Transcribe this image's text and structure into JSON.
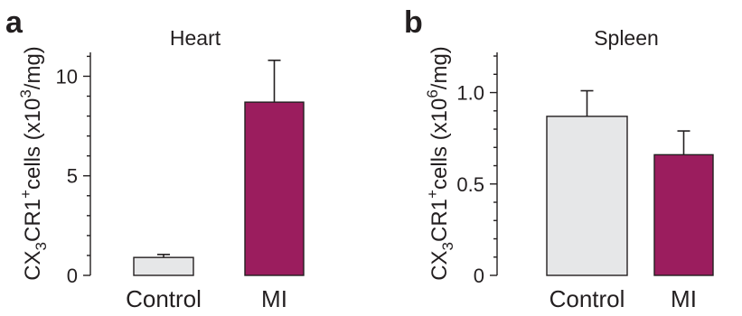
{
  "chart_data": [
    {
      "panel": "a",
      "type": "bar",
      "title": "Heart",
      "ylabel_parts": [
        "CX",
        "3",
        "CR1",
        "+",
        "cells (x10",
        "3",
        "/mg)"
      ],
      "categories": [
        "Control",
        "MI"
      ],
      "values": [
        0.9,
        8.7
      ],
      "errors": [
        0.15,
        2.1
      ],
      "colors": [
        "#e6e7e8",
        "#9b1d5e"
      ],
      "ylim": [
        0,
        11.2
      ],
      "yticks": [
        0,
        5,
        10
      ],
      "ytick_labels": [
        "0",
        "5",
        "10"
      ]
    },
    {
      "panel": "b",
      "type": "bar",
      "title": "Spleen",
      "ylabel_parts": [
        "CX",
        "3",
        "CR1",
        "+",
        "cells (x10",
        "6",
        "/mg)"
      ],
      "categories": [
        "Control",
        "MI"
      ],
      "values": [
        0.87,
        0.66
      ],
      "errors": [
        0.14,
        0.13
      ],
      "colors": [
        "#e6e7e8",
        "#9b1d5e"
      ],
      "ylim": [
        0,
        1.22
      ],
      "yticks": [
        0,
        0.5,
        1.0
      ],
      "ytick_labels": [
        "0",
        "0.5",
        "1.0"
      ]
    }
  ]
}
